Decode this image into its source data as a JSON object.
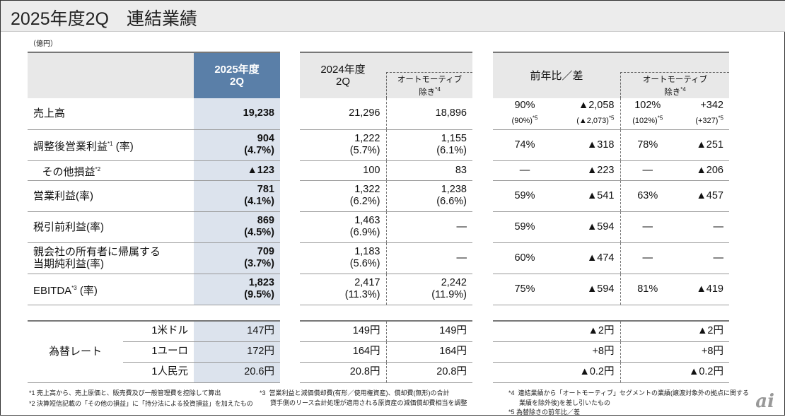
{
  "title": "2025年度2Q　連結業績",
  "unit": "（億円）",
  "header": {
    "cur": "2025年度\n2Q",
    "prev": "2024年度\n2Q",
    "auto_excl": "オートモーティブ\n除き",
    "auto_note": "*4",
    "yoy": "前年比／差",
    "yoy_auto": "オートモーティブ\n除き",
    "yoy_auto_note": "*4"
  },
  "rows": [
    {
      "label": "売上高",
      "note": "",
      "cur": "19,238",
      "cur2": "",
      "prev": "21,296",
      "prev2": "",
      "auto": "18,896",
      "auto2": "",
      "r1": "90%",
      "r1b": "(90%)*5",
      "d1": "▲2,058",
      "d1b": "(▲2,073)*5",
      "r2": "102%",
      "r2b": "(102%)*5",
      "d2": "+342",
      "d2b": "(+327)*5"
    },
    {
      "label": "調整後営業利益",
      "note": "*1",
      "suffix": " (率)",
      "cur": "904",
      "cur2": "(4.7%)",
      "prev": "1,222",
      "prev2": "(5.7%)",
      "auto": "1,155",
      "auto2": "(6.1%)",
      "r1": "74%",
      "d1": "▲318",
      "r2": "78%",
      "d2": "▲251"
    },
    {
      "label": "その他損益",
      "note": "*2",
      "indent": true,
      "cur": "▲123",
      "prev": "100",
      "auto": "83",
      "r1": "—",
      "d1": "▲223",
      "r2": "—",
      "d2": "▲206"
    },
    {
      "label": "営業利益(率)",
      "cur": "781",
      "cur2": "(4.1%)",
      "prev": "1,322",
      "prev2": "(6.2%)",
      "auto": "1,238",
      "auto2": "(6.6%)",
      "r1": "59%",
      "d1": "▲541",
      "r2": "63%",
      "d2": "▲457"
    },
    {
      "label": "税引前利益(率)",
      "cur": "869",
      "cur2": "(4.5%)",
      "prev": "1,463",
      "prev2": "(6.9%)",
      "auto": "—",
      "r1": "59%",
      "d1": "▲594",
      "r2": "—",
      "d2": "—"
    },
    {
      "label": "親会社の所有者に帰属する\n当期純利益(率)",
      "cur": "709",
      "cur2": "(3.7%)",
      "prev": "1,183",
      "prev2": "(5.6%)",
      "auto": "—",
      "r1": "60%",
      "d1": "▲474",
      "r2": "—",
      "d2": "—"
    },
    {
      "label": "EBITDA",
      "note": "*3",
      "suffix": " (率)",
      "cur": "1,823",
      "cur2": "(9.5%)",
      "prev": "2,417",
      "prev2": "(11.3%)",
      "auto": "2,242",
      "auto2": "(11.9%)",
      "r1": "75%",
      "d1": "▲594",
      "r2": "81%",
      "d2": "▲419"
    }
  ],
  "fx": {
    "label": "為替レート",
    "rows": [
      {
        "cur_name": "1米ドル",
        "cur": "147円",
        "prev": "149円",
        "auto": "149円",
        "d1": "▲2円",
        "d2": "▲2円"
      },
      {
        "cur_name": "1ユーロ",
        "cur": "172円",
        "prev": "164円",
        "auto": "164円",
        "d1": "+8円",
        "d2": "+8円"
      },
      {
        "cur_name": "1人民元",
        "cur": "20.6円",
        "prev": "20.8円",
        "auto": "20.8円",
        "d1": "▲0.2円",
        "d2": "▲0.2円"
      }
    ]
  },
  "footnotes": [
    "*1  売上高から、売上原価と、販売費及び一般管理費を控除して算出",
    "*2  決算短信記載の「その他の損益」に「持分法による投資損益」を加えたもの",
    "*3  営業利益と減価償却費(有形／使用権資産)、償却費(無形)の合計\n      貸手側のリース会計処理が適用される原資産の減価償却費相当を調整",
    "*4  連結業績から「オートモーティブ」セグメントの業績(譲渡対象外の拠点に関する\n      業績を除外後)を差し引いたもの",
    "*5  為替除きの前年比／差"
  ],
  "logo": "ai"
}
